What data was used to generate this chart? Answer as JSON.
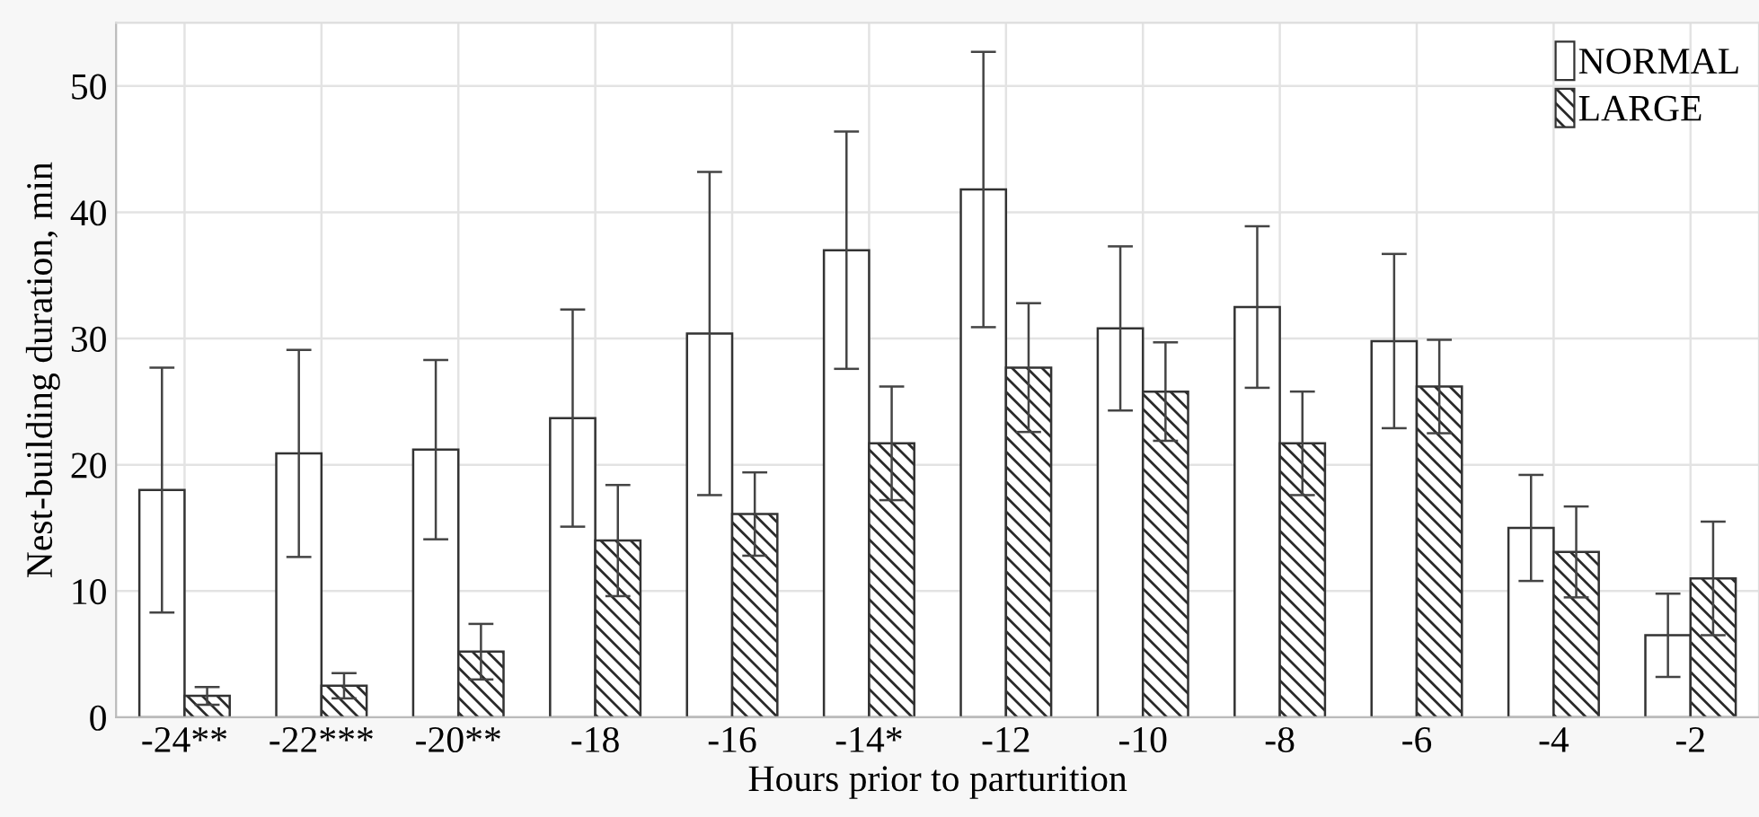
{
  "chart_data": {
    "type": "bar",
    "xlabel": "Hours prior to parturition",
    "ylabel": "Nest-building duration, min",
    "categories": [
      "-24**",
      "-22***",
      "-20**",
      "-18",
      "-16",
      "-14*",
      "-12",
      "-10",
      "-8",
      "-6",
      "-4",
      "-2"
    ],
    "series": [
      {
        "name": "NORMAL",
        "color": "#ffffff",
        "values": [
          18.0,
          20.9,
          21.2,
          23.7,
          30.4,
          37.0,
          41.8,
          30.8,
          32.5,
          29.8,
          15.0,
          6.5
        ],
        "errors": [
          9.7,
          8.2,
          7.1,
          8.6,
          12.8,
          9.4,
          10.9,
          6.5,
          6.4,
          6.9,
          4.2,
          3.3
        ]
      },
      {
        "name": "LARGE",
        "color": "#2a2a2a",
        "values": [
          1.7,
          2.5,
          5.2,
          14.0,
          16.1,
          21.7,
          27.7,
          25.8,
          21.7,
          26.2,
          13.1,
          11.0
        ],
        "errors": [
          0.7,
          1.0,
          2.2,
          4.4,
          3.3,
          4.5,
          5.1,
          3.9,
          4.1,
          3.7,
          3.6,
          4.5
        ]
      }
    ],
    "ylim": [
      0,
      55
    ],
    "yticks": [
      0,
      10,
      20,
      30,
      40,
      50
    ],
    "grid": true,
    "legend": "top right"
  }
}
